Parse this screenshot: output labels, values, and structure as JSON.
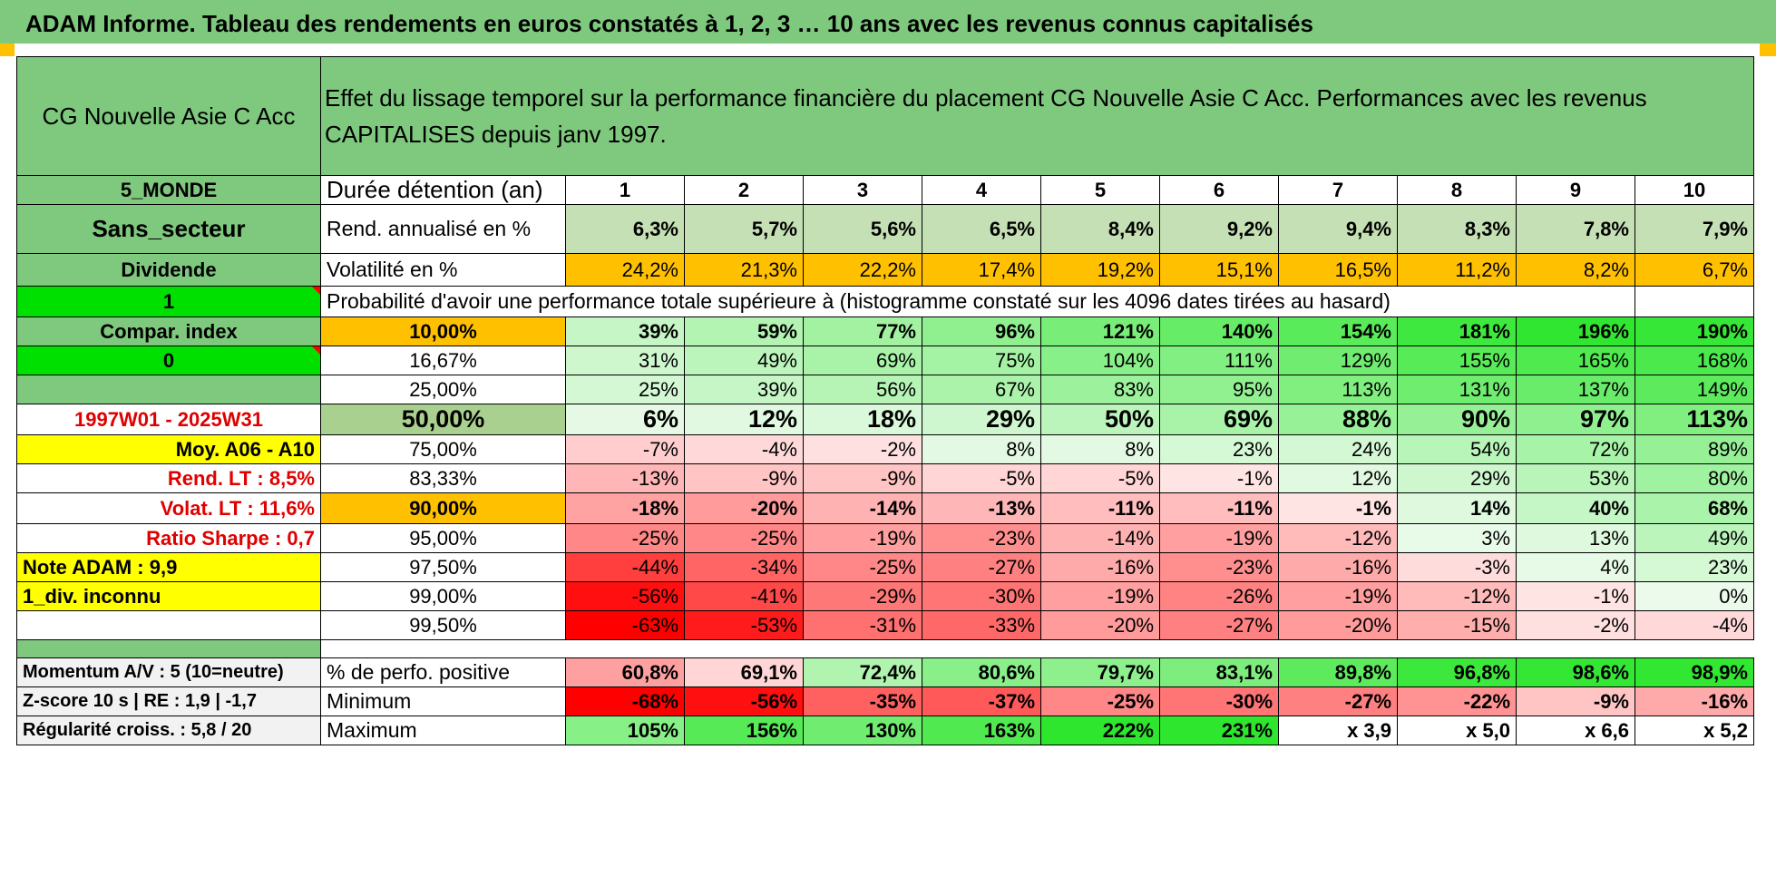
{
  "title": "ADAM Informe. Tableau des rendements en euros constatés à 1, 2, 3 … 10 ans avec les revenus connus capitalisés",
  "fund_name": "CG Nouvelle Asie C Acc",
  "description": "Effet du lissage temporel sur la performance financière du placement CG Nouvelle Asie C Acc. Performances avec les revenus CAPITALISES depuis janv 1997.",
  "side": {
    "zone": "5_MONDE",
    "sector": "Sans_secteur",
    "dividend": "Dividende",
    "flag1": "1",
    "compar": "Compar. index",
    "flag0": "0",
    "period": "1997W01 - 2025W31",
    "moy": "Moy. A06 - A10",
    "rend_lt": "Rend. LT :    8,5%",
    "volat_lt": "Volat. LT :    11,6%",
    "sharpe": "Ratio Sharpe :    0,7",
    "note": "Note ADAM : 9,9",
    "div": "1_div. inconnu",
    "momentum": "Momentum A/V : 5 (10=neutre)",
    "zscore": "Z-score 10 s | RE : 1,9 | -1,7",
    "regularite": "Régularité croiss. : 5,8 / 20"
  },
  "labels": {
    "duree": "Durée détention (an)",
    "rend": "Rend. annualisé en %",
    "vol": "Volatilité en %",
    "prob": "Probabilité d'avoir une performance totale supérieure à (histogramme constaté sur les 4096 dates tirées au hasard)",
    "pos": "% de perfo. positive",
    "min": "Minimum",
    "max": "Maximum"
  },
  "years": [
    "1",
    "2",
    "3",
    "4",
    "5",
    "6",
    "7",
    "8",
    "9",
    "10"
  ],
  "rend": [
    "6,3%",
    "5,7%",
    "5,6%",
    "6,5%",
    "8,4%",
    "9,2%",
    "9,4%",
    "8,3%",
    "7,8%",
    "7,9%"
  ],
  "vol": [
    "24,2%",
    "21,3%",
    "22,2%",
    "17,4%",
    "19,2%",
    "15,1%",
    "16,5%",
    "11,2%",
    "8,2%",
    "6,7%"
  ],
  "quantiles": [
    {
      "p": "10,00%",
      "v": [
        "39%",
        "59%",
        "77%",
        "96%",
        "121%",
        "140%",
        "154%",
        "181%",
        "196%",
        "190%"
      ]
    },
    {
      "p": "16,67%",
      "v": [
        "31%",
        "49%",
        "69%",
        "75%",
        "104%",
        "111%",
        "129%",
        "155%",
        "165%",
        "168%"
      ]
    },
    {
      "p": "25,00%",
      "v": [
        "25%",
        "39%",
        "56%",
        "67%",
        "83%",
        "95%",
        "113%",
        "131%",
        "137%",
        "149%"
      ]
    },
    {
      "p": "50,00%",
      "v": [
        "6%",
        "12%",
        "18%",
        "29%",
        "50%",
        "69%",
        "88%",
        "90%",
        "97%",
        "113%"
      ]
    },
    {
      "p": "75,00%",
      "v": [
        "-7%",
        "-4%",
        "-2%",
        "8%",
        "8%",
        "23%",
        "24%",
        "54%",
        "72%",
        "89%"
      ]
    },
    {
      "p": "83,33%",
      "v": [
        "-13%",
        "-9%",
        "-9%",
        "-5%",
        "-5%",
        "-1%",
        "12%",
        "29%",
        "53%",
        "80%"
      ]
    },
    {
      "p": "90,00%",
      "v": [
        "-18%",
        "-20%",
        "-14%",
        "-13%",
        "-11%",
        "-11%",
        "-1%",
        "14%",
        "40%",
        "68%"
      ]
    },
    {
      "p": "95,00%",
      "v": [
        "-25%",
        "-25%",
        "-19%",
        "-23%",
        "-14%",
        "-19%",
        "-12%",
        "3%",
        "13%",
        "49%"
      ]
    },
    {
      "p": "97,50%",
      "v": [
        "-44%",
        "-34%",
        "-25%",
        "-27%",
        "-16%",
        "-23%",
        "-16%",
        "-3%",
        "4%",
        "23%"
      ]
    },
    {
      "p": "99,00%",
      "v": [
        "-56%",
        "-41%",
        "-29%",
        "-30%",
        "-19%",
        "-26%",
        "-19%",
        "-12%",
        "-1%",
        "0%"
      ]
    },
    {
      "p": "99,50%",
      "v": [
        "-63%",
        "-53%",
        "-31%",
        "-33%",
        "-20%",
        "-27%",
        "-20%",
        "-15%",
        "-2%",
        "-4%"
      ]
    }
  ],
  "pos": [
    "60,8%",
    "69,1%",
    "72,4%",
    "80,6%",
    "79,7%",
    "83,1%",
    "89,8%",
    "96,8%",
    "98,6%",
    "98,9%"
  ],
  "min": [
    "-68%",
    "-56%",
    "-35%",
    "-37%",
    "-25%",
    "-30%",
    "-27%",
    "-22%",
    "-9%",
    "-16%"
  ],
  "max": [
    "105%",
    "156%",
    "130%",
    "163%",
    "222%",
    "231%",
    "x 3,9",
    "x 5,0",
    "x 6,6",
    "x 5,2"
  ]
}
